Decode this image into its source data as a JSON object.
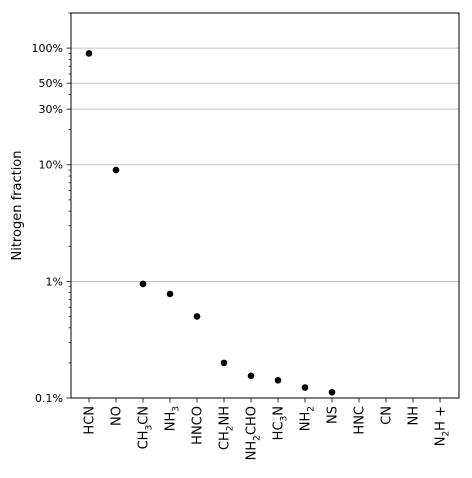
{
  "chart_data": {
    "type": "scatter",
    "ylabel": "Nitrogen fraction",
    "xlabel": "",
    "y_scale": "log",
    "ylim": [
      0.1,
      200
    ],
    "grid": {
      "y_lines": [
        0.1,
        1,
        10,
        30,
        50,
        100
      ],
      "x": false
    },
    "y_ticks": [
      {
        "value": 100,
        "label": "100%"
      },
      {
        "value": 50,
        "label": "50%"
      },
      {
        "value": 30,
        "label": "30%"
      },
      {
        "value": 10,
        "label": "10%"
      },
      {
        "value": 1,
        "label": "1%"
      },
      {
        "value": 0.1,
        "label": "0.1%"
      }
    ],
    "y_minor_ticks": [
      0.2,
      0.3,
      0.4,
      0.5,
      0.6,
      0.7,
      0.8,
      0.9,
      2,
      3,
      4,
      5,
      6,
      7,
      8,
      9,
      20,
      40,
      60,
      70,
      80,
      90,
      200
    ],
    "categories": [
      {
        "base": "HCN"
      },
      {
        "base": "NO"
      },
      {
        "base": "CH",
        "sub": "3",
        "rest": "CN"
      },
      {
        "base": "NH",
        "sub": "3",
        "rest": ""
      },
      {
        "base": "HNCO"
      },
      {
        "base": "CH",
        "sub": "2",
        "rest": "NH"
      },
      {
        "base": "NH",
        "sub": "2",
        "rest": "CHO"
      },
      {
        "base": "HC",
        "sub": "3",
        "rest": "N"
      },
      {
        "base": "NH",
        "sub": "2",
        "rest": ""
      },
      {
        "base": "NS"
      },
      {
        "base": "HNC"
      },
      {
        "base": "CN"
      },
      {
        "base": "NH"
      },
      {
        "base": "N",
        "sub": "2",
        "rest": "H +"
      }
    ],
    "series": [
      {
        "color": "#000000",
        "values": [
          90,
          9.0,
          0.95,
          0.78,
          0.5,
          0.2,
          0.155,
          0.142,
          0.123,
          0.112,
          null,
          null,
          null,
          null
        ]
      }
    ]
  }
}
